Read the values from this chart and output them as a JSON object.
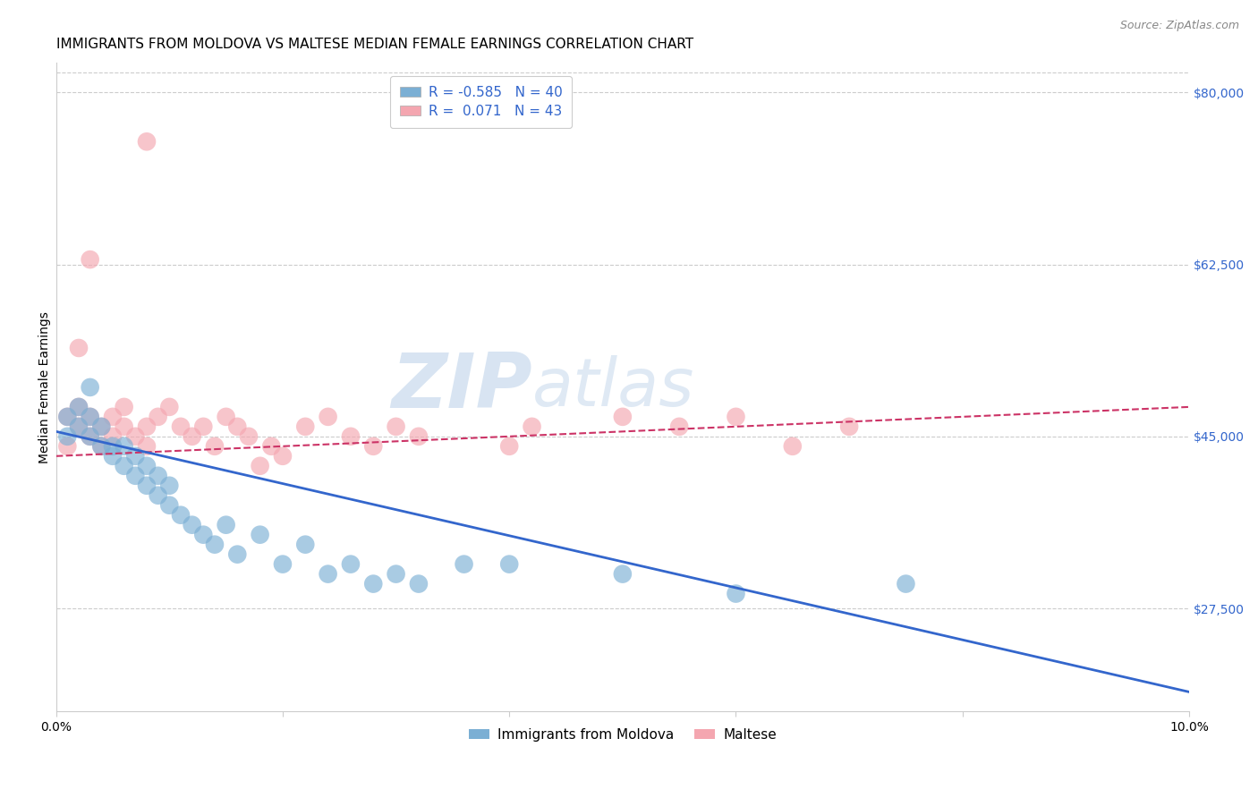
{
  "title": "IMMIGRANTS FROM MOLDOVA VS MALTESE MEDIAN FEMALE EARNINGS CORRELATION CHART",
  "source": "Source: ZipAtlas.com",
  "ylabel": "Median Female Earnings",
  "x_min": 0.0,
  "x_max": 0.1,
  "y_min": 17000,
  "y_max": 83000,
  "yticks": [
    27500,
    45000,
    62500,
    80000
  ],
  "ytick_labels": [
    "$27,500",
    "$45,000",
    "$62,500",
    "$80,000"
  ],
  "xticks": [
    0.0,
    0.02,
    0.04,
    0.06,
    0.08,
    0.1
  ],
  "xtick_labels": [
    "0.0%",
    "",
    "",
    "",
    "",
    "10.0%"
  ],
  "background_color": "#ffffff",
  "grid_color": "#cccccc",
  "watermark": "ZIPatlas",
  "title_fontsize": 11,
  "axis_label_fontsize": 10,
  "tick_fontsize": 10,
  "legend_fontsize": 11,
  "series": [
    {
      "label": "Immigrants from Moldova",
      "R": -0.585,
      "N": 40,
      "color": "#7bafd4",
      "trend_color": "#3366cc",
      "trend_style": "solid",
      "x": [
        0.001,
        0.001,
        0.002,
        0.002,
        0.003,
        0.003,
        0.003,
        0.004,
        0.004,
        0.005,
        0.005,
        0.006,
        0.006,
        0.007,
        0.007,
        0.008,
        0.008,
        0.009,
        0.009,
        0.01,
        0.01,
        0.011,
        0.012,
        0.013,
        0.014,
        0.015,
        0.016,
        0.018,
        0.02,
        0.022,
        0.024,
        0.026,
        0.028,
        0.03,
        0.032,
        0.036,
        0.04,
        0.05,
        0.06,
        0.075
      ],
      "y": [
        45000,
        47000,
        46000,
        48000,
        45000,
        47000,
        50000,
        44000,
        46000,
        43000,
        44000,
        42000,
        44000,
        41000,
        43000,
        40000,
        42000,
        39000,
        41000,
        38000,
        40000,
        37000,
        36000,
        35000,
        34000,
        36000,
        33000,
        35000,
        32000,
        34000,
        31000,
        32000,
        30000,
        31000,
        30000,
        32000,
        32000,
        31000,
        29000,
        30000
      ]
    },
    {
      "label": "Maltese",
      "R": 0.071,
      "N": 43,
      "color": "#f4a6b0",
      "trend_color": "#cc3366",
      "trend_style": "dashed",
      "x": [
        0.001,
        0.001,
        0.002,
        0.002,
        0.003,
        0.003,
        0.004,
        0.004,
        0.005,
        0.005,
        0.006,
        0.006,
        0.007,
        0.008,
        0.008,
        0.009,
        0.01,
        0.011,
        0.012,
        0.013,
        0.014,
        0.015,
        0.016,
        0.017,
        0.018,
        0.019,
        0.02,
        0.022,
        0.024,
        0.026,
        0.028,
        0.03,
        0.032,
        0.04,
        0.042,
        0.05,
        0.055,
        0.06,
        0.065,
        0.07,
        0.002,
        0.003,
        0.008
      ],
      "y": [
        44000,
        47000,
        46000,
        48000,
        45000,
        47000,
        44000,
        46000,
        45000,
        47000,
        46000,
        48000,
        45000,
        44000,
        46000,
        47000,
        48000,
        46000,
        45000,
        46000,
        44000,
        47000,
        46000,
        45000,
        42000,
        44000,
        43000,
        46000,
        47000,
        45000,
        44000,
        46000,
        45000,
        44000,
        46000,
        47000,
        46000,
        47000,
        44000,
        46000,
        54000,
        63000,
        75000
      ]
    }
  ],
  "blue_trend_x0": 0.0,
  "blue_trend_y0": 45500,
  "blue_trend_x1": 0.1,
  "blue_trend_y1": 19000,
  "pink_trend_x0": 0.0,
  "pink_trend_y0": 43000,
  "pink_trend_x1": 0.1,
  "pink_trend_y1": 48000
}
